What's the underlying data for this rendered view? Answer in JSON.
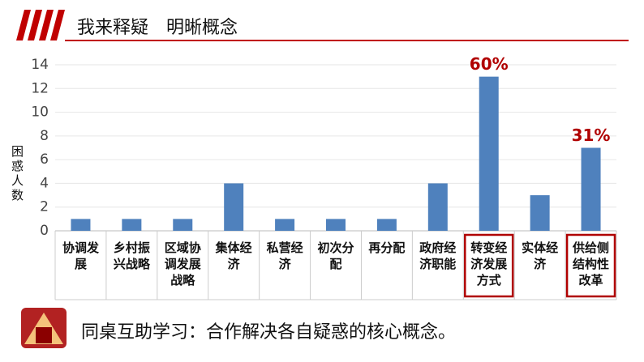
{
  "header": {
    "title": "我来释疑　明晰概念"
  },
  "chart_data": {
    "type": "bar",
    "y_label": "困惑人数",
    "categories": [
      "协调发展",
      "乡村振兴战略",
      "区域协调发展战略",
      "集体经济",
      "私营经济",
      "初次分配",
      "再分配",
      "政府经济职能",
      "转变经济发展方式",
      "实体经济",
      "供给侧结构性改革"
    ],
    "values": [
      1,
      1,
      1,
      4,
      1,
      1,
      1,
      4,
      13,
      3,
      7
    ],
    "color": "#4f81bd",
    "annotations": [
      "60%",
      "31%"
    ],
    "ylim": [
      0,
      14
    ],
    "yticks": [
      0,
      2,
      4,
      6,
      8,
      10,
      12,
      14
    ],
    "grid": true
  },
  "footer": {
    "text": "同桌互助学习：合作解决各自疑惑的核心概念。"
  }
}
